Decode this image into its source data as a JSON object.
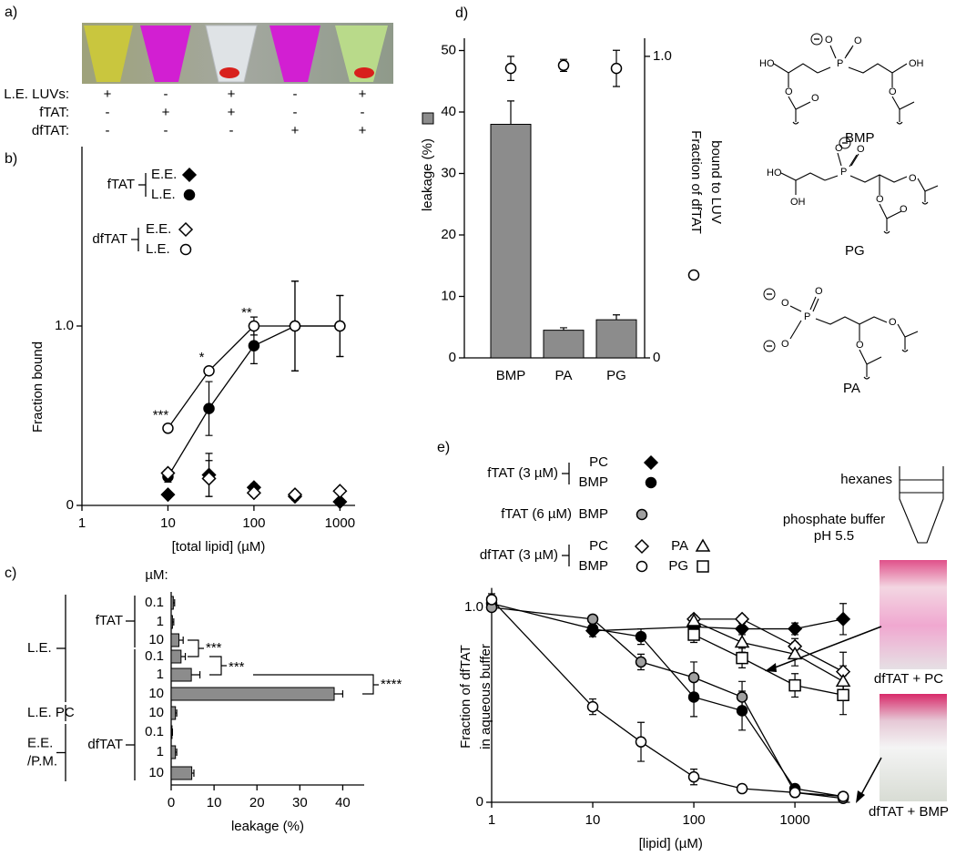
{
  "panel_a": {
    "label": "a)",
    "rows": [
      {
        "name": "L.E. LUVs:",
        "cells": [
          "+",
          "-",
          "+",
          "-",
          "+"
        ]
      },
      {
        "name": "fTAT:",
        "cells": [
          "-",
          "+",
          "+",
          "-",
          "-"
        ]
      },
      {
        "name": "dfTAT:",
        "cells": [
          "-",
          "-",
          "-",
          "+",
          "+"
        ]
      }
    ]
  },
  "chart_data": [
    {
      "type": "line",
      "panel_label": "b)",
      "xlabel": "[total lipid] (µM)",
      "ylabel": "Fraction bound",
      "log_x": true,
      "xlim": [
        1,
        1500
      ],
      "xticks": [
        1,
        10,
        100,
        1000
      ],
      "ylim": [
        0,
        2
      ],
      "yticks": [
        0,
        {
          "value": 1,
          "label": "1.0"
        }
      ],
      "series": [
        {
          "name": "E.E.",
          "group": "fTAT",
          "marker": "diamond",
          "color": "#000000",
          "fill": "#000000",
          "line": false,
          "x": [
            10,
            30,
            100,
            300,
            1000
          ],
          "values": [
            0.06,
            0.17,
            0.1,
            0.05,
            0.02
          ],
          "errors": [
            0.01,
            0.12,
            0.02,
            0.02,
            0.01
          ]
        },
        {
          "name": "L.E.",
          "group": "fTAT",
          "marker": "circle",
          "color": "#000000",
          "fill": "#000000",
          "line": true,
          "x": [
            10,
            30,
            100,
            300,
            1000
          ],
          "values": [
            0.16,
            0.54,
            0.89,
            1.0,
            1.0
          ],
          "errors": [
            0.03,
            0.15,
            0.1,
            0.25,
            0.17
          ]
        },
        {
          "name": "E.E.",
          "group": "dfTAT",
          "marker": "diamond",
          "color": "#000000",
          "fill": "#ffffff",
          "line": false,
          "x": [
            10,
            30,
            100,
            300,
            1000
          ],
          "values": [
            0.18,
            0.15,
            0.07,
            0.06,
            0.08
          ],
          "errors": [
            0.02,
            0.1,
            0.02,
            0.02,
            0.01
          ]
        },
        {
          "name": "L.E.",
          "group": "dfTAT",
          "marker": "circle",
          "color": "#000000",
          "fill": "#ffffff",
          "line": true,
          "x": [
            10,
            30,
            100,
            300,
            1000
          ],
          "values": [
            0.43,
            0.75,
            1.0,
            1.0,
            1.0
          ],
          "errors": [
            0.01,
            0.02,
            0.05,
            0.25,
            0.17
          ]
        }
      ],
      "annotations": [
        "***",
        "*",
        "**"
      ]
    },
    {
      "type": "barh",
      "panel_label": "c)",
      "unit_label": "µM:",
      "xlabel": "leakage (%)",
      "xlim": [
        0,
        45
      ],
      "xticks": [
        0,
        10,
        20,
        30,
        40
      ],
      "color": "#8c8c8c",
      "categories": [
        "0.1",
        "1",
        "10",
        "0.1",
        "1",
        "10",
        "10",
        "0.1",
        "1",
        "10"
      ],
      "values": [
        0.5,
        0.3,
        1.8,
        2.3,
        4.7,
        38,
        1.0,
        0.2,
        1.0,
        4.8
      ],
      "errors": [
        0.3,
        0.3,
        1.0,
        1.0,
        2.0,
        2.0,
        0.3,
        0.1,
        0.3,
        0.5
      ],
      "groups": [
        "fTAT",
        "dfTAT"
      ],
      "conditions": [
        [
          "L.E."
        ],
        [
          "L.E. PC"
        ],
        [
          "E.E.",
          "/P.M."
        ]
      ],
      "annotations": [
        "***",
        "***",
        "****"
      ]
    },
    {
      "type": "bar",
      "panel_label": "d)",
      "categories": [
        "BMP",
        "PA",
        "PG"
      ],
      "ylabel": "leakage (%)",
      "y2label": [
        "Fraction of dfTAT",
        "bound to LUV"
      ],
      "ylim": [
        0,
        52
      ],
      "yticks": [
        0,
        10,
        20,
        30,
        40,
        50
      ],
      "y2lim": [
        0,
        1.06
      ],
      "y2ticks": [
        0,
        {
          "value": 1,
          "label": "1.0"
        }
      ],
      "series": [
        {
          "color": "#8c8c8c",
          "values": [
            38,
            4.5,
            6.2
          ],
          "errors": [
            3.8,
            0.4,
            0.8
          ]
        },
        {
          "axis": "y2",
          "marker": "circle",
          "color": "#000000",
          "fill": "#ffffff",
          "values": [
            0.96,
            0.97,
            0.96
          ],
          "errors": [
            0.04,
            0.02,
            0.06
          ]
        }
      ]
    },
    {
      "type": "line",
      "panel_label": "e)",
      "xlabel": "[lipid] (µM)",
      "ylabel": [
        "Fraction of dfTAT",
        "in aqueous buffer"
      ],
      "log_x": true,
      "xlim": [
        1,
        3500
      ],
      "xticks": [
        1,
        10,
        100,
        1000
      ],
      "ylim": [
        0,
        1.1
      ],
      "yticks": [
        0,
        {
          "value": 1,
          "label": "1.0"
        }
      ],
      "series": [
        {
          "name": "PC",
          "group": "fTAT (3 µM)",
          "marker": "diamond",
          "color": "#000000",
          "fill": "#000000",
          "line": true,
          "x": [
            10,
            100,
            300,
            1000,
            3000
          ],
          "values": [
            0.88,
            0.9,
            0.89,
            0.89,
            0.94
          ],
          "errors": [
            0.03,
            0.03,
            0.03,
            0.03,
            0.08
          ]
        },
        {
          "name": "BMP",
          "group": "fTAT (3 µM)",
          "marker": "circle",
          "color": "#000000",
          "fill": "#000000",
          "line": true,
          "x": [
            1,
            10,
            30,
            100,
            300,
            1000,
            3000
          ],
          "values": [
            1.02,
            0.89,
            0.85,
            0.54,
            0.47,
            0.07,
            0.03
          ],
          "errors": [
            0.02,
            0.02,
            0.04,
            0.1,
            0.1,
            0.02,
            0.01
          ]
        },
        {
          "name": "BMP",
          "group": "fTAT (6 µM)",
          "marker": "circle",
          "color": "#000000",
          "fill": "#a0a0a0",
          "line": true,
          "x": [
            1,
            10,
            30,
            100,
            300,
            1000,
            3000
          ],
          "values": [
            1.0,
            0.94,
            0.72,
            0.64,
            0.54,
            0.05,
            0.02
          ],
          "errors": [
            0.02,
            0.02,
            0.04,
            0.08,
            0.08,
            0.02,
            0.01
          ]
        },
        {
          "name": "PC",
          "group": "dfTAT (3 µM)",
          "marker": "diamond",
          "color": "#000000",
          "fill": "#ffffff",
          "line": true,
          "x": [
            100,
            300,
            1000,
            3000
          ],
          "values": [
            0.94,
            0.94,
            0.8,
            0.67
          ],
          "errors": [
            0.02,
            0.02,
            0.04,
            0.1
          ]
        },
        {
          "name": "BMP",
          "group": "dfTAT (3 µM)",
          "marker": "circle",
          "color": "#000000",
          "fill": "#ffffff",
          "line": true,
          "x": [
            1,
            10,
            30,
            100,
            300,
            1000,
            3000
          ],
          "values": [
            1.04,
            0.49,
            0.31,
            0.13,
            0.07,
            0.05,
            0.03
          ],
          "errors": [
            0.03,
            0.04,
            0.1,
            0.04,
            0.02,
            0.01,
            0.01
          ]
        },
        {
          "name": "PA",
          "group": "dfTAT (3 µM)",
          "marker": "triangle",
          "color": "#000000",
          "fill": "#ffffff",
          "line": true,
          "x": [
            100,
            300,
            1000,
            3000
          ],
          "values": [
            0.93,
            0.82,
            0.76,
            0.62
          ],
          "errors": [
            0.03,
            0.05,
            0.06,
            0.08
          ]
        },
        {
          "name": "PG",
          "group": "dfTAT (3 µM)",
          "marker": "square",
          "color": "#000000",
          "fill": "#ffffff",
          "line": true,
          "x": [
            100,
            300,
            1000,
            3000
          ],
          "values": [
            0.86,
            0.74,
            0.6,
            0.55
          ],
          "errors": [
            0.04,
            0.05,
            0.06,
            0.1
          ]
        }
      ]
    }
  ],
  "structures": [
    {
      "name": "BMP",
      "atoms": [
        "HO",
        "O",
        "P",
        "O",
        "O",
        "O",
        "O",
        "OH"
      ]
    },
    {
      "name": "PG",
      "atoms": [
        "HO",
        "OH",
        "O",
        "P",
        "O",
        "O",
        "O",
        "O"
      ]
    },
    {
      "name": "PA",
      "atoms": [
        "O",
        "P",
        "O",
        "O",
        "O",
        "O"
      ]
    }
  ],
  "panel_e_inset": {
    "layers": [
      "hexanes",
      "phosphate buffer",
      "pH 5.5"
    ],
    "photos": [
      "dfTAT + PC",
      "dfTAT + BMP"
    ]
  }
}
